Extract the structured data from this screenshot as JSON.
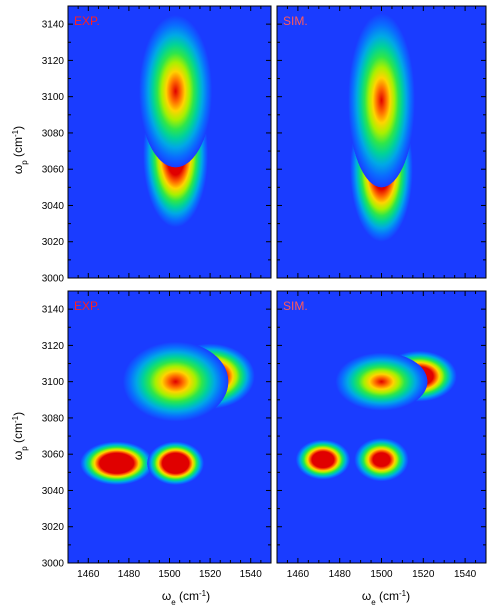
{
  "chart_data": [
    {
      "type": "heatmap",
      "panel_label": "EXP.",
      "ylabel": "ω_p (cm^-1)",
      "ylabel_main": "ω",
      "ylabel_sub": "p",
      "ylabel_unit": " (cm",
      "ylabel_exp": "-1",
      "ylabel_close": ")",
      "xlim": [
        1450,
        1550
      ],
      "ylim": [
        3000,
        3150
      ],
      "yticks": [
        "3000",
        "3020",
        "3040",
        "3060",
        "3080",
        "3100",
        "3120",
        "3140"
      ],
      "peaks": [
        {
          "x": 1503,
          "y": 3103,
          "amplitude": 1.0
        },
        {
          "x": 1503,
          "y": 3068,
          "amplitude": 0.55
        }
      ]
    },
    {
      "type": "heatmap",
      "panel_label": "SIM.",
      "xlim": [
        1450,
        1550
      ],
      "ylim": [
        3000,
        3150
      ],
      "peaks": [
        {
          "x": 1500,
          "y": 3098,
          "amplitude": 1.0
        },
        {
          "x": 1500,
          "y": 3060,
          "amplitude": 0.55
        }
      ]
    },
    {
      "type": "heatmap",
      "panel_label": "EXP.",
      "ylabel": "ω_p (cm^-1)",
      "ylabel_main": "ω",
      "ylabel_sub": "p",
      "ylabel_unit": " (cm",
      "ylabel_exp": "-1",
      "ylabel_close": ")",
      "xlabel": "ω_e (cm^-1)",
      "xlabel_main": "ω",
      "xlabel_sub": "e",
      "xlabel_unit": " (cm",
      "xlabel_exp": "-1",
      "xlabel_close": ")",
      "xlim": [
        1450,
        1550
      ],
      "ylim": [
        3000,
        3150
      ],
      "xticks": [
        "1460",
        "1480",
        "1500",
        "1520",
        "1540"
      ],
      "yticks": [
        "3000",
        "3020",
        "3040",
        "3060",
        "3080",
        "3100",
        "3120",
        "3140"
      ],
      "peaks": [
        {
          "x": 1503,
          "y": 3100,
          "amplitude": 1.0
        },
        {
          "x": 1520,
          "y": 3103,
          "amplitude": 0.45
        },
        {
          "x": 1474,
          "y": 3055,
          "amplitude": 0.25
        },
        {
          "x": 1503,
          "y": 3055,
          "amplitude": 0.25
        }
      ]
    },
    {
      "type": "heatmap",
      "panel_label": "SIM.",
      "xlabel": "ω_e (cm^-1)",
      "xlabel_main": "ω",
      "xlabel_sub": "e",
      "xlabel_unit": " (cm",
      "xlabel_exp": "-1",
      "xlabel_close": ")",
      "xlim": [
        1450,
        1550
      ],
      "ylim": [
        3000,
        3150
      ],
      "xticks": [
        "1460",
        "1480",
        "1500",
        "1520",
        "1540"
      ],
      "peaks": [
        {
          "x": 1500,
          "y": 3100,
          "amplitude": 1.0
        },
        {
          "x": 1518,
          "y": 3103,
          "amplitude": 0.4
        },
        {
          "x": 1472,
          "y": 3057,
          "amplitude": 0.35
        },
        {
          "x": 1500,
          "y": 3057,
          "amplitude": 0.5
        }
      ]
    }
  ],
  "colors": {
    "background": "#1a3cff",
    "frame": "#000000",
    "panel_label_exp": "#ff2020",
    "panel_label_sim": "#ff5a5a"
  }
}
